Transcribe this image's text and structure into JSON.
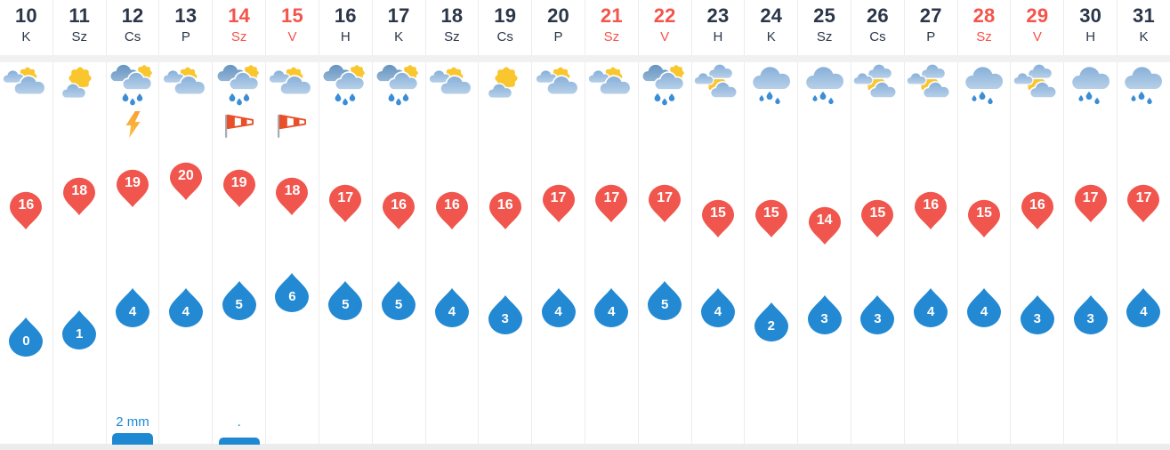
{
  "colors": {
    "text_dark": "#2b3648",
    "weekend_red": "#f4544a",
    "pin_red": "#f0564d",
    "drop_blue": "#2389d3",
    "precip_blue": "#1e88d2",
    "grid_line": "#ececec",
    "strip_gray": "#f1f1f2",
    "sun_yellow": "#f9c62e",
    "cloud_light": "#9bbcdd",
    "cloud_dark": "#7aa3c9",
    "bolt_orange": "#f9a43c",
    "windsock_orange": "#e8502a"
  },
  "chart_data": {
    "type": "table",
    "description_axes": {
      "high_temp_range": [
        14,
        20
      ],
      "low_temp_range": [
        0,
        6
      ]
    }
  },
  "days": [
    {
      "date": "10",
      "dow": "K",
      "weekend": false,
      "icon": "sun-clouds",
      "extra": null,
      "high": 16,
      "low": 0,
      "precip_label": null,
      "precip_bar": 0
    },
    {
      "date": "11",
      "dow": "Sz",
      "weekend": false,
      "icon": "sun-small-cloud",
      "extra": null,
      "high": 18,
      "low": 1,
      "precip_label": null,
      "precip_bar": 0
    },
    {
      "date": "12",
      "dow": "Cs",
      "weekend": false,
      "icon": "sun-rain",
      "extra": "lightning",
      "high": 19,
      "low": 4,
      "precip_label": "2 mm",
      "precip_bar": 13
    },
    {
      "date": "13",
      "dow": "P",
      "weekend": false,
      "icon": "sun-clouds",
      "extra": null,
      "high": 20,
      "low": 4,
      "precip_label": null,
      "precip_bar": 0
    },
    {
      "date": "14",
      "dow": "Sz",
      "weekend": true,
      "icon": "sun-rain",
      "extra": "windsock",
      "high": 19,
      "low": 5,
      "precip_label": ".",
      "precip_bar": 8
    },
    {
      "date": "15",
      "dow": "V",
      "weekend": true,
      "icon": "sun-clouds",
      "extra": "windsock",
      "high": 18,
      "low": 6,
      "precip_label": null,
      "precip_bar": 0
    },
    {
      "date": "16",
      "dow": "H",
      "weekend": false,
      "icon": "sun-rain",
      "extra": null,
      "high": 17,
      "low": 5,
      "precip_label": null,
      "precip_bar": 0
    },
    {
      "date": "17",
      "dow": "K",
      "weekend": false,
      "icon": "sun-rain",
      "extra": null,
      "high": 16,
      "low": 5,
      "precip_label": null,
      "precip_bar": 0
    },
    {
      "date": "18",
      "dow": "Sz",
      "weekend": false,
      "icon": "sun-clouds",
      "extra": null,
      "high": 16,
      "low": 4,
      "precip_label": null,
      "precip_bar": 0
    },
    {
      "date": "19",
      "dow": "Cs",
      "weekend": false,
      "icon": "sun-small-cloud",
      "extra": null,
      "high": 16,
      "low": 3,
      "precip_label": null,
      "precip_bar": 0
    },
    {
      "date": "20",
      "dow": "P",
      "weekend": false,
      "icon": "sun-clouds",
      "extra": null,
      "high": 17,
      "low": 4,
      "precip_label": null,
      "precip_bar": 0
    },
    {
      "date": "21",
      "dow": "Sz",
      "weekend": true,
      "icon": "sun-clouds",
      "extra": null,
      "high": 17,
      "low": 4,
      "precip_label": null,
      "precip_bar": 0
    },
    {
      "date": "22",
      "dow": "V",
      "weekend": true,
      "icon": "sun-rain",
      "extra": null,
      "high": 17,
      "low": 5,
      "precip_label": null,
      "precip_bar": 0
    },
    {
      "date": "23",
      "dow": "H",
      "weekend": false,
      "icon": "clouds-sun",
      "extra": null,
      "high": 15,
      "low": 4,
      "precip_label": null,
      "precip_bar": 0
    },
    {
      "date": "24",
      "dow": "K",
      "weekend": false,
      "icon": "cloud-rain",
      "extra": null,
      "high": 15,
      "low": 2,
      "precip_label": null,
      "precip_bar": 0
    },
    {
      "date": "25",
      "dow": "Sz",
      "weekend": false,
      "icon": "cloud-rain",
      "extra": null,
      "high": 14,
      "low": 3,
      "precip_label": null,
      "precip_bar": 0
    },
    {
      "date": "26",
      "dow": "Cs",
      "weekend": false,
      "icon": "clouds-sun",
      "extra": null,
      "high": 15,
      "low": 3,
      "precip_label": null,
      "precip_bar": 0
    },
    {
      "date": "27",
      "dow": "P",
      "weekend": false,
      "icon": "clouds-sun",
      "extra": null,
      "high": 16,
      "low": 4,
      "precip_label": null,
      "precip_bar": 0
    },
    {
      "date": "28",
      "dow": "Sz",
      "weekend": true,
      "icon": "cloud-rain",
      "extra": null,
      "high": 15,
      "low": 4,
      "precip_label": null,
      "precip_bar": 0
    },
    {
      "date": "29",
      "dow": "V",
      "weekend": true,
      "icon": "clouds-sun",
      "extra": null,
      "high": 16,
      "low": 3,
      "precip_label": null,
      "precip_bar": 0
    },
    {
      "date": "30",
      "dow": "H",
      "weekend": false,
      "icon": "cloud-rain",
      "extra": null,
      "high": 17,
      "low": 3,
      "precip_label": null,
      "precip_bar": 0
    },
    {
      "date": "31",
      "dow": "K",
      "weekend": false,
      "icon": "cloud-rain",
      "extra": null,
      "high": 17,
      "low": 4,
      "precip_label": null,
      "precip_bar": 0
    }
  ]
}
